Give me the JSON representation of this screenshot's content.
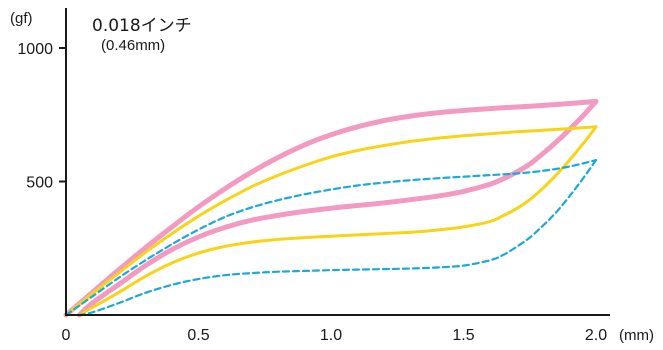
{
  "chart_data": {
    "type": "line",
    "title": "0.018インチ",
    "subtitle": "(0.46mm)",
    "xlabel": "(mm)",
    "ylabel": "(gf)",
    "xlim": [
      0,
      2.2
    ],
    "ylim": [
      0,
      1000
    ],
    "xticks": [
      "0",
      "0.5",
      "1.0",
      "1.5",
      "2.0"
    ],
    "xtick_values": [
      0,
      0.5,
      1.0,
      1.5,
      2.0
    ],
    "yticks": [
      "500",
      "1000"
    ],
    "ytick_values": [
      500,
      1000
    ],
    "grid": false,
    "legend": "none",
    "series": [
      {
        "color": "#f29ac2",
        "style": "solid",
        "weight": "thick",
        "loading": {
          "x": [
            0,
            0.1,
            0.2,
            0.3,
            0.4,
            0.5,
            0.6,
            0.7,
            0.8,
            0.9,
            1.0,
            1.1,
            1.2,
            1.3,
            1.4,
            1.5,
            1.6,
            1.7,
            1.8,
            1.9,
            2.0
          ],
          "y": [
            0,
            85,
            170,
            252,
            330,
            405,
            473,
            535,
            590,
            637,
            675,
            705,
            728,
            745,
            757,
            766,
            773,
            779,
            785,
            792,
            800
          ]
        },
        "unloading": {
          "x": [
            2.0,
            1.95,
            1.9,
            1.85,
            1.8,
            1.75,
            1.7,
            1.65,
            1.6,
            1.5,
            1.4,
            1.3,
            1.2,
            1.1,
            1.0,
            0.9,
            0.8,
            0.7,
            0.6,
            0.5,
            0.4,
            0.3,
            0.2,
            0.1,
            0.05
          ],
          "y": [
            800,
            745,
            695,
            648,
            605,
            565,
            535,
            510,
            490,
            463,
            445,
            432,
            420,
            410,
            400,
            388,
            373,
            355,
            328,
            292,
            245,
            185,
            115,
            45,
            0
          ]
        }
      },
      {
        "color": "#f7d417",
        "style": "solid",
        "weight": "medium",
        "loading": {
          "x": [
            0,
            0.1,
            0.2,
            0.3,
            0.4,
            0.5,
            0.6,
            0.7,
            0.8,
            0.9,
            1.0,
            1.1,
            1.2,
            1.3,
            1.4,
            1.5,
            1.6,
            1.7,
            1.8,
            1.9,
            2.0
          ],
          "y": [
            0,
            80,
            158,
            235,
            305,
            370,
            428,
            480,
            523,
            560,
            592,
            616,
            635,
            650,
            662,
            671,
            679,
            686,
            692,
            698,
            705
          ]
        },
        "unloading": {
          "x": [
            2.0,
            1.95,
            1.9,
            1.85,
            1.8,
            1.75,
            1.7,
            1.65,
            1.6,
            1.5,
            1.4,
            1.3,
            1.2,
            1.1,
            1.0,
            0.9,
            0.8,
            0.7,
            0.6,
            0.5,
            0.4,
            0.3,
            0.2,
            0.1,
            0.05
          ],
          "y": [
            705,
            640,
            580,
            525,
            475,
            432,
            398,
            372,
            350,
            330,
            318,
            310,
            305,
            300,
            295,
            290,
            283,
            273,
            257,
            232,
            195,
            145,
            85,
            28,
            0
          ]
        }
      },
      {
        "color": "#1aa9d9",
        "style": "dashed",
        "weight": "thin",
        "loading": {
          "x": [
            0,
            0.1,
            0.2,
            0.3,
            0.4,
            0.5,
            0.6,
            0.7,
            0.8,
            0.9,
            1.0,
            1.1,
            1.2,
            1.3,
            1.4,
            1.5,
            1.6,
            1.7,
            1.8,
            1.9,
            2.0
          ],
          "y": [
            0,
            70,
            140,
            205,
            265,
            320,
            367,
            403,
            430,
            452,
            470,
            485,
            496,
            505,
            512,
            518,
            524,
            530,
            540,
            556,
            580
          ]
        },
        "unloading": {
          "x": [
            2.0,
            1.95,
            1.9,
            1.85,
            1.8,
            1.75,
            1.7,
            1.65,
            1.6,
            1.5,
            1.4,
            1.3,
            1.2,
            1.1,
            1.0,
            0.9,
            0.8,
            0.7,
            0.6,
            0.5,
            0.4,
            0.3,
            0.2,
            0.1,
            0.05
          ],
          "y": [
            580,
            510,
            445,
            385,
            335,
            290,
            255,
            225,
            205,
            185,
            178,
            174,
            172,
            170,
            168,
            165,
            162,
            157,
            149,
            135,
            113,
            83,
            45,
            10,
            0
          ]
        }
      }
    ]
  }
}
